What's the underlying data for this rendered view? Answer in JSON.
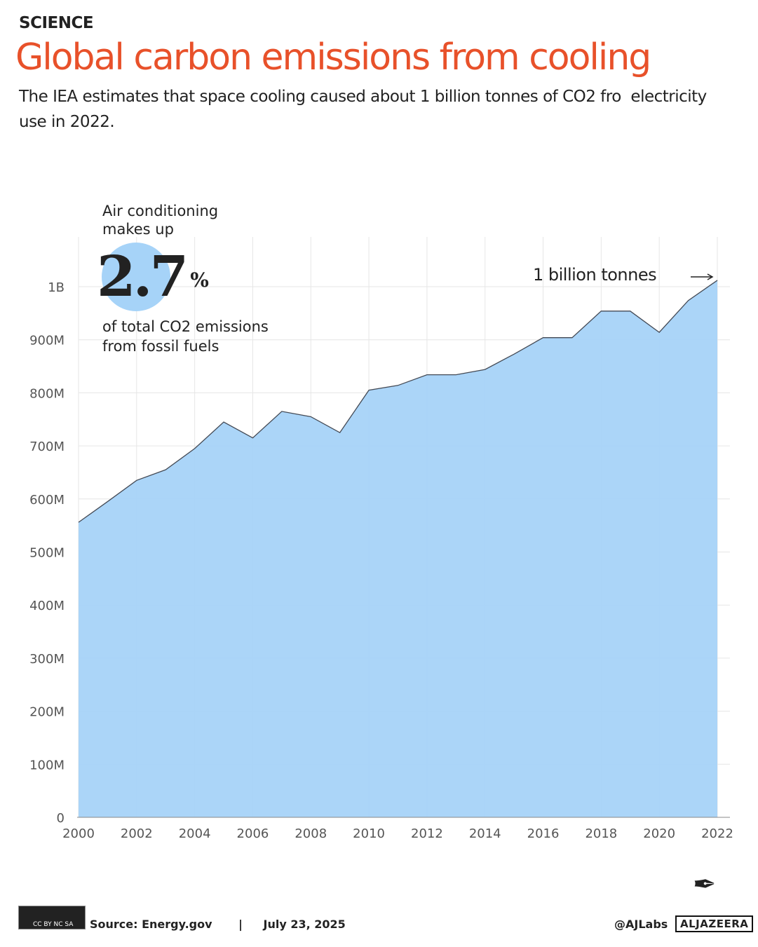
{
  "header": {
    "section": "SCIENCE",
    "title": "Global carbon emissions from cooling",
    "subtitle": "The IEA estimates that space cooling caused about 1 billion tonnes of CO2 fro  electricity use in 2022."
  },
  "callout": {
    "top_text": "Air conditioning makes up",
    "big_value": "2.7",
    "big_unit": "%",
    "bottom_text": "of total CO2 emissions from fossil fuels",
    "end_label": "1 billion tonnes"
  },
  "chart_data": {
    "type": "area",
    "x": [
      2000,
      2001,
      2002,
      2003,
      2004,
      2005,
      2006,
      2007,
      2008,
      2009,
      2010,
      2011,
      2012,
      2013,
      2014,
      2015,
      2016,
      2017,
      2018,
      2019,
      2020,
      2021,
      2022
    ],
    "values": [
      556,
      595,
      635,
      655,
      695,
      745,
      715,
      765,
      755,
      725,
      805,
      814,
      834,
      834,
      844,
      873,
      904,
      904,
      954,
      954,
      914,
      974,
      1012
    ],
    "value_unit": "million tonnes CO2",
    "ylim": [
      0,
      1000
    ],
    "xlim": [
      2000,
      2022
    ],
    "yticks": [
      0,
      100,
      200,
      300,
      400,
      500,
      600,
      700,
      800,
      900,
      1000
    ],
    "ytick_labels": [
      "0",
      "100M",
      "200M",
      "300M",
      "400M",
      "500M",
      "600M",
      "700M",
      "800M",
      "900M",
      "1B"
    ],
    "xticks": [
      2000,
      2002,
      2004,
      2006,
      2008,
      2010,
      2012,
      2014,
      2016,
      2018,
      2020,
      2022
    ],
    "grid": true,
    "fill_color": "#a6d3f8",
    "line_color": "#444a55"
  },
  "footer": {
    "license": "CC BY NC SA",
    "source": "Source:  Energy.gov",
    "separator": "|",
    "date": "July 23, 2025",
    "handle": "@AJLabs",
    "brand": "ALJAZEERA"
  },
  "colors": {
    "title": "#e8512a"
  }
}
